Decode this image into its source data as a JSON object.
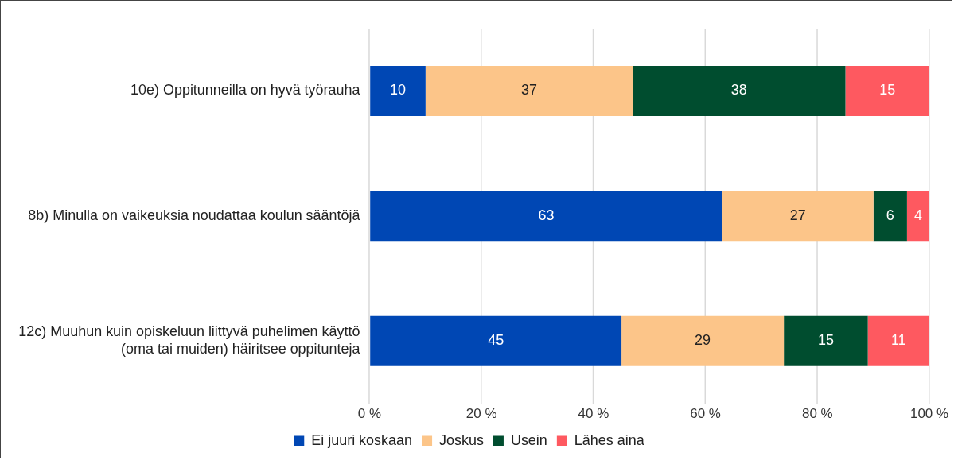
{
  "chart_data": {
    "type": "bar",
    "orientation": "horizontal",
    "stacked": true,
    "categories": [
      "10e) Oppitunneilla on hyvä työrauha",
      "8b) Minulla on vaikeuksia noudattaa koulun sääntöjä",
      "12c) Muuhun kuin opiskeluun liittyvä puhelimen käyttö (oma tai muiden) häiritsee oppitunteja"
    ],
    "series": [
      {
        "name": "Ei juuri koskaan",
        "color": "#0047b4",
        "values": [
          10,
          63,
          45
        ]
      },
      {
        "name": "Joskus",
        "color": "#fcc589",
        "values": [
          37,
          27,
          29
        ]
      },
      {
        "name": "Usein",
        "color": "#004d2f",
        "values": [
          38,
          6,
          15
        ]
      },
      {
        "name": "Lähes aina",
        "color": "#fe5960",
        "values": [
          15,
          4,
          11
        ]
      }
    ],
    "xlim": [
      0,
      100
    ],
    "xticks": [
      {
        "value": 0,
        "label": "0 %"
      },
      {
        "value": 20,
        "label": "20 %"
      },
      {
        "value": 40,
        "label": "40 %"
      },
      {
        "value": 60,
        "label": "60 %"
      },
      {
        "value": 80,
        "label": "80 %"
      },
      {
        "value": 100,
        "label": "100 %"
      }
    ],
    "grid": "x",
    "legend": "bottom",
    "data_labels": true
  }
}
